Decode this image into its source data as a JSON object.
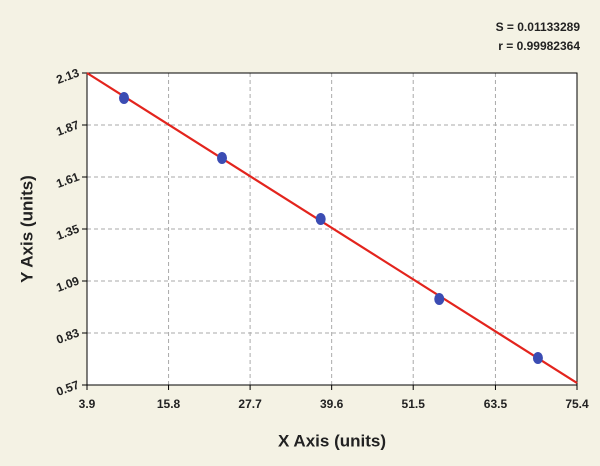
{
  "chart_data": {
    "type": "scatter",
    "annotations": [
      "S = 0.01133289",
      "r = 0.99982364"
    ],
    "x_label": "X Axis (units)",
    "y_label": "Y Axis (units)",
    "x": [
      9.3,
      23.6,
      38.0,
      55.3,
      69.7
    ],
    "values": [
      2.005,
      1.705,
      1.4,
      1.0,
      0.705
    ],
    "color": "#3b4cb3",
    "fit_x": [
      3.9,
      75.4
    ],
    "fit_y": [
      2.13,
      0.58
    ],
    "fit_color": "#e3241d",
    "xlim": [
      3.9,
      75.4
    ],
    "xticks": [
      3.9,
      15.8,
      27.7,
      39.6,
      51.5,
      63.5,
      75.4
    ],
    "ylim": [
      0.57,
      2.13
    ],
    "yticks": [
      0.57,
      0.83,
      1.09,
      1.35,
      1.61,
      1.87,
      2.13
    ],
    "grid": true
  }
}
